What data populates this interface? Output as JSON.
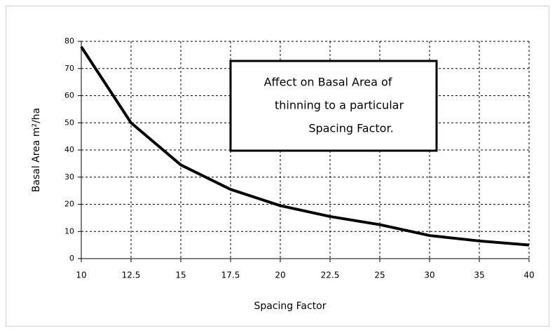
{
  "chart_data": {
    "type": "line",
    "x_label": "Spacing Factor",
    "y_label": "Basal Area m²/ha",
    "annotation": [
      "Affect on Basal Area of",
      "thinning to a particular",
      "Spacing Factor."
    ],
    "categories": [
      "10",
      "12.5",
      "15",
      "17.5",
      "20",
      "22.5",
      "25",
      "30",
      "35",
      "40"
    ],
    "series": [
      {
        "name": "Basal Area",
        "color": "#000000",
        "values": [
          78,
          50,
          34.5,
          25.5,
          19.5,
          15.5,
          12.5,
          8.5,
          6.5,
          5
        ]
      }
    ],
    "ylim": [
      0,
      80
    ],
    "yticks": [
      0,
      10,
      20,
      30,
      40,
      50,
      60,
      70,
      80
    ],
    "grid": true
  }
}
